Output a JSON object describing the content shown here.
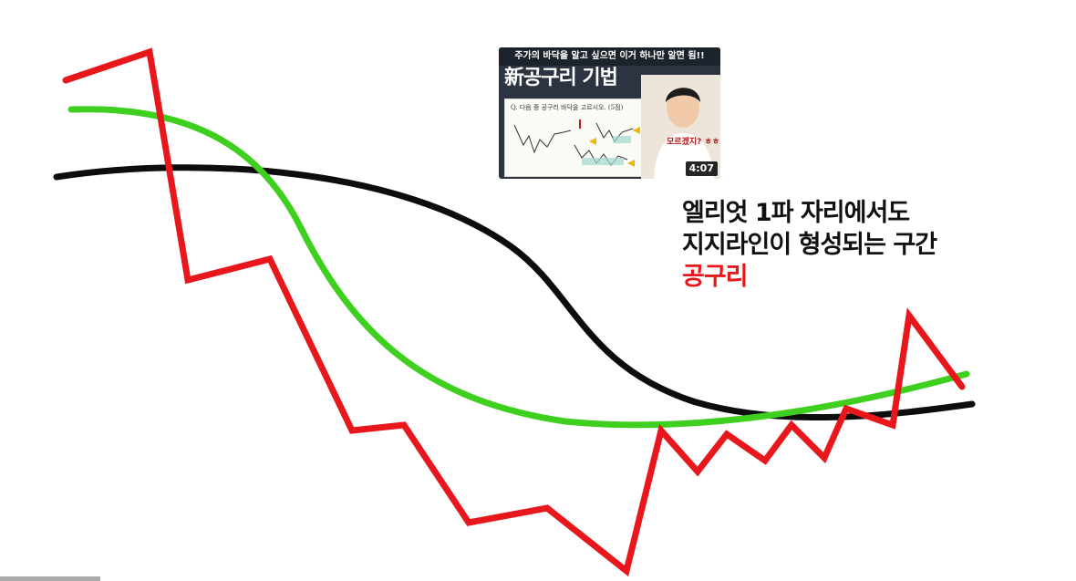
{
  "caption": {
    "line1": "엘리엇 1파 자리에서도",
    "line2": "지지라인이 형성되는 구간",
    "highlight": "공구리"
  },
  "thumbnail": {
    "banner": "주가의 바닥을 알고 싶으면 이거 하나만 알면 됨!!",
    "title": "新공구리 기법",
    "question": "Q. 다음 중 공구리 바닥을 고르시오. (5점)",
    "bubble": "모르겠지? ㅎㅎ",
    "duration": "4:07"
  },
  "colors": {
    "price": "#e8171b",
    "fast_ma": "#3fcf1f",
    "slow_ma": "#0d0d0d",
    "highlight_text": "#e8171b"
  }
}
